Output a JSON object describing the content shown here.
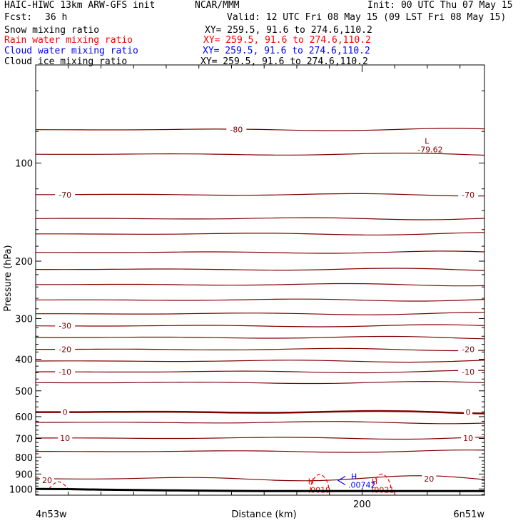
{
  "header": {
    "model": "HAIC-HIWC 13km ARW-GFS init",
    "org": "NCAR/MMM",
    "init": "Init: 00 UTC Thu 07 May 15",
    "fcst_label": "Fcst:",
    "fcst_value": "36 h",
    "valid": "Valid: 12 UTC Fri 08 May 15 (09 LST Fri 08 May 15)"
  },
  "fields": [
    {
      "name": "Snow mixing ratio",
      "xy": "XY= 259.5, 91.6 to 274.6,110.2",
      "color": "#000000"
    },
    {
      "name": "Rain water mixing ratio",
      "xy": "XY= 259.5, 91.6 to 274.6,110.2",
      "color": "#ff0000"
    },
    {
      "name": "Cloud water mixing ratio",
      "xy": "XY= 259.5, 91.6 to 274.6,110.2",
      "color": "#0000ff"
    },
    {
      "name": "Cloud ice mixing ratio",
      "xy": "XY= 259.5, 91.6 to 274.6,110.2",
      "color": "#000000"
    }
  ],
  "colors": {
    "temperature": "#800000",
    "rain": "#ff0000",
    "cloud_water": "#0000ff",
    "terrain": "#000000"
  },
  "chart_data": {
    "type": "line",
    "xlabel": "Distance (km)",
    "ylabel": "Pressure (hPa)",
    "xlim": [
      0,
      275
    ],
    "ylim_pressure": [
      1045,
      50
    ],
    "yscale": "log-pressure",
    "x_ticks": [
      200
    ],
    "y_ticks": [
      100,
      200,
      300,
      400,
      500,
      600,
      700,
      800,
      900,
      1000
    ],
    "x_endpoints": {
      "left": "4n53w",
      "right": "6n51w"
    },
    "temperature_contours": {
      "interval": 5,
      "lines": [
        {
          "level": -80,
          "pressure": 79
        },
        {
          "level": -75,
          "pressure": 94
        },
        {
          "level": -70,
          "pressure": 125
        },
        {
          "level": -65,
          "pressure": 148
        },
        {
          "level": -60,
          "pressure": 165
        },
        {
          "level": -55,
          "pressure": 188
        },
        {
          "level": -50,
          "pressure": 212
        },
        {
          "level": -45,
          "pressure": 236
        },
        {
          "level": -40,
          "pressure": 263
        },
        {
          "level": -35,
          "pressure": 290
        },
        {
          "level": -30,
          "pressure": 316
        },
        {
          "level": -25,
          "pressure": 343
        },
        {
          "level": -20,
          "pressure": 373
        },
        {
          "level": -15,
          "pressure": 405
        },
        {
          "level": -10,
          "pressure": 437
        },
        {
          "level": -5,
          "pressure": 472
        },
        {
          "level": 0,
          "pressure": 581
        },
        {
          "level": 5,
          "pressure": 625
        },
        {
          "level": 10,
          "pressure": 698
        },
        {
          "level": 15,
          "pressure": 767
        },
        {
          "level": 20,
          "pressure": 930
        }
      ],
      "labels": [
        {
          "text": "-80",
          "x": 123,
          "pressure": 79
        },
        {
          "text": "-70",
          "x": 18,
          "pressure": 125
        },
        {
          "text": "-70",
          "x": 265,
          "pressure": 125
        },
        {
          "text": "-30",
          "x": 18,
          "pressure": 316
        },
        {
          "text": "-20",
          "x": 18,
          "pressure": 373
        },
        {
          "text": "-20",
          "x": 265,
          "pressure": 373
        },
        {
          "text": "-10",
          "x": 18,
          "pressure": 437
        },
        {
          "text": "-10",
          "x": 265,
          "pressure": 437
        },
        {
          "text": "0",
          "x": 18,
          "pressure": 581
        },
        {
          "text": "0",
          "x": 265,
          "pressure": 581
        },
        {
          "text": "10",
          "x": 18,
          "pressure": 698
        },
        {
          "text": "10",
          "x": 265,
          "pressure": 698
        },
        {
          "text": "20",
          "x": 7,
          "pressure": 940
        },
        {
          "text": "20",
          "x": 241,
          "pressure": 930
        }
      ],
      "extrema": [
        {
          "label": "L",
          "value": "-79.62",
          "x": 241,
          "pressure": 90
        }
      ]
    },
    "rain_water": {
      "cells": [
        {
          "x": 14,
          "top_pressure": 950,
          "base_pressure": 1000
        },
        {
          "x": 174,
          "top_pressure": 902,
          "base_pressure": 1012
        },
        {
          "x": 212,
          "top_pressure": 900,
          "base_pressure": 1008
        }
      ],
      "maxima": [
        {
          "label": "H",
          "value": ".0019",
          "x": 173,
          "pressure": 985
        },
        {
          "label": "H",
          "value": ".0021",
          "x": 212,
          "pressure": 985
        }
      ]
    },
    "cloud_water": {
      "maxima": [
        {
          "label": "H",
          "value": ".00742",
          "x": 195,
          "pressure": 952
        }
      ]
    },
    "terrain": {
      "x": [
        0,
        20,
        40,
        60,
        80,
        100,
        120,
        140,
        160,
        180,
        200,
        220,
        240,
        260,
        275
      ],
      "pressure": [
        1000,
        1001,
        1005,
        1008,
        1010,
        1012,
        1014,
        1015,
        1015,
        1015,
        1015,
        1015,
        1015,
        1015,
        1015
      ]
    }
  }
}
